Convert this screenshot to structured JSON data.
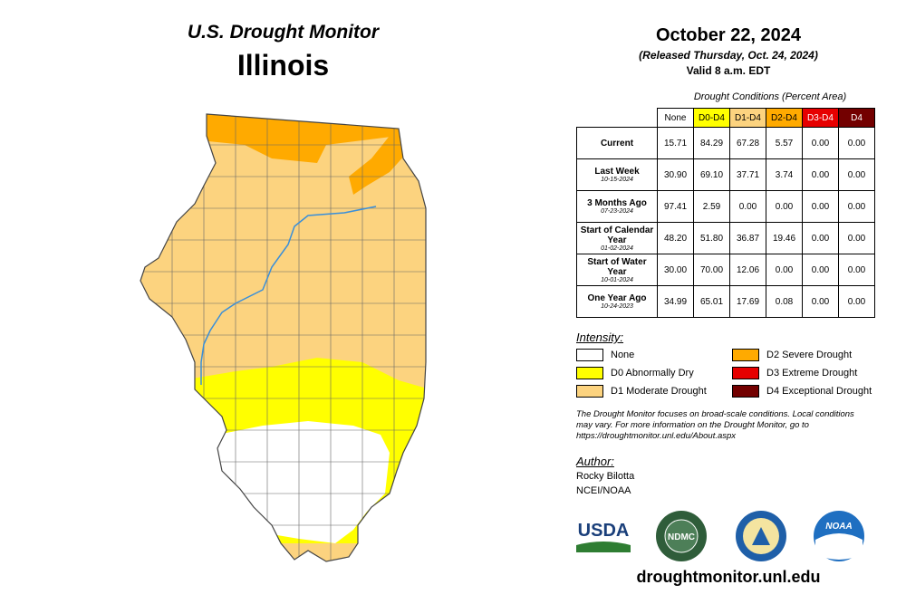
{
  "header": {
    "title": "U.S. Drought Monitor",
    "state": "Illinois",
    "date": "October 22, 2024",
    "released": "(Released Thursday, Oct. 24, 2024)",
    "valid": "Valid 8 a.m. EDT"
  },
  "table": {
    "caption": "Drought Conditions (Percent Area)",
    "columns": [
      {
        "label": "None",
        "color": "#ffffff",
        "text": "#000000"
      },
      {
        "label": "D0-D4",
        "color": "#ffff00",
        "text": "#000000"
      },
      {
        "label": "D1-D4",
        "color": "#fcd37f",
        "text": "#000000"
      },
      {
        "label": "D2-D4",
        "color": "#ffaa00",
        "text": "#000000"
      },
      {
        "label": "D3-D4",
        "color": "#e60000",
        "text": "#ffffff"
      },
      {
        "label": "D4",
        "color": "#730000",
        "text": "#ffffff"
      }
    ],
    "rows": [
      {
        "label": "Current",
        "values": [
          "15.71",
          "84.29",
          "67.28",
          "5.57",
          "0.00",
          "0.00"
        ]
      },
      {
        "label": "Last Week",
        "date": "10-15-2024",
        "values": [
          "30.90",
          "69.10",
          "37.71",
          "3.74",
          "0.00",
          "0.00"
        ]
      },
      {
        "label": "3 Months Ago",
        "date": "07-23-2024",
        "values": [
          "97.41",
          "2.59",
          "0.00",
          "0.00",
          "0.00",
          "0.00"
        ]
      },
      {
        "label": "Start of Calendar Year",
        "date": "01-02-2024",
        "values": [
          "48.20",
          "51.80",
          "36.87",
          "19.46",
          "0.00",
          "0.00"
        ]
      },
      {
        "label": "Start of Water Year",
        "date": "10-01-2024",
        "values": [
          "30.00",
          "70.00",
          "12.06",
          "0.00",
          "0.00",
          "0.00"
        ]
      },
      {
        "label": "One Year Ago",
        "date": "10-24-2023",
        "values": [
          "34.99",
          "65.01",
          "17.69",
          "0.08",
          "0.00",
          "0.00"
        ]
      }
    ]
  },
  "legend": {
    "title": "Intensity:",
    "items": [
      {
        "label": "None",
        "color": "#ffffff"
      },
      {
        "label": "D0 Abnormally Dry",
        "color": "#ffff00"
      },
      {
        "label": "D1 Moderate Drought",
        "color": "#fcd37f"
      },
      {
        "label": "D2 Severe Drought",
        "color": "#ffaa00"
      },
      {
        "label": "D3 Extreme Drought",
        "color": "#e60000"
      },
      {
        "label": "D4 Exceptional Drought",
        "color": "#730000"
      }
    ]
  },
  "note": "The Drought Monitor focuses on broad-scale conditions. Local conditions may vary. For more information on the Drought Monitor, go to https://droughtmonitor.unl.edu/About.aspx",
  "author": {
    "heading": "Author:",
    "name": "Rocky Bilotta",
    "org": "NCEI/NOAA"
  },
  "logos": [
    "USDA",
    "NDMC",
    "NOAA"
  ],
  "url": "droughtmonitor.unl.edu"
}
